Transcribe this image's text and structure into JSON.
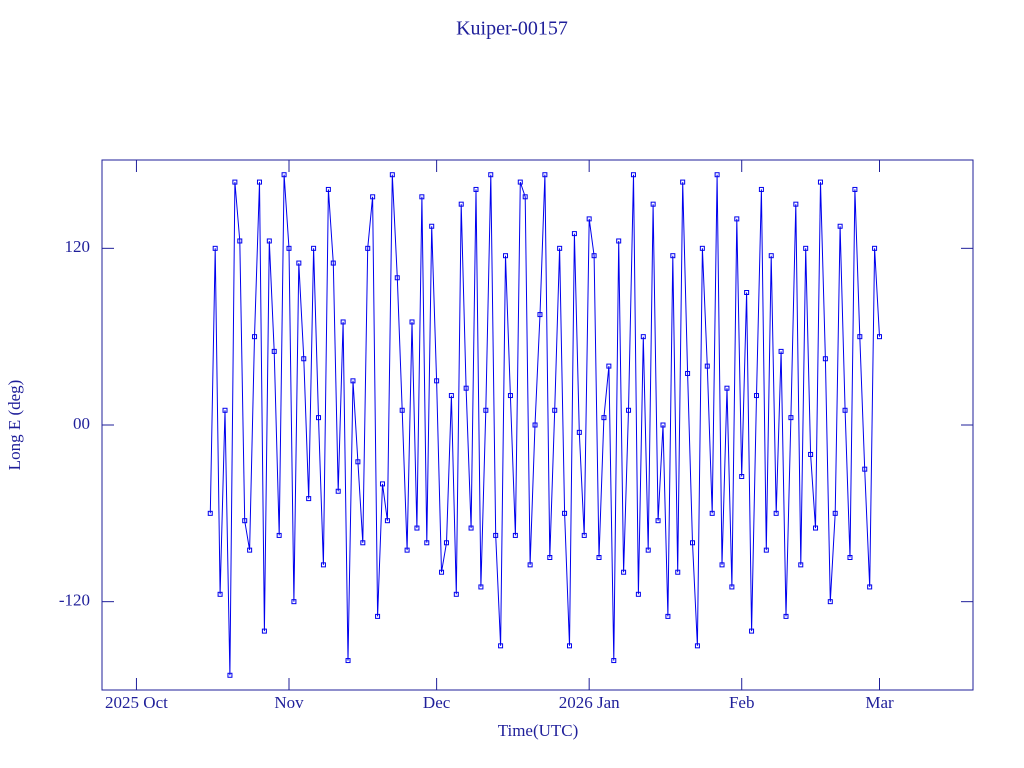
{
  "chart_data": {
    "type": "line",
    "title": "Kuiper-00157",
    "x_label": "Time(UTC)",
    "y_label": "Long E (deg)",
    "color": "#0000ee",
    "marker": "square",
    "xlim": [
      -7,
      170
    ],
    "xticks": [
      {
        "value": 0,
        "label": "2025 Oct"
      },
      {
        "value": 31,
        "label": "Nov"
      },
      {
        "value": 61,
        "label": "Dec"
      },
      {
        "value": 92,
        "label": "2026 Jan"
      },
      {
        "value": 123,
        "label": "Feb"
      },
      {
        "value": 151,
        "label": "Mar"
      }
    ],
    "ylim": [
      -180,
      180
    ],
    "yticks": [
      -120,
      {
        "value": 0,
        "label": "00"
      },
      120
    ],
    "x": [
      15,
      16,
      17,
      18,
      19,
      20,
      21,
      22,
      23,
      24,
      25,
      26,
      27,
      28,
      29,
      30,
      31,
      32,
      33,
      34,
      35,
      36,
      37,
      38,
      39,
      40,
      41,
      42,
      43,
      44,
      45,
      46,
      47,
      48,
      49,
      50,
      51,
      52,
      53,
      54,
      55,
      56,
      57,
      58,
      59,
      60,
      61,
      62,
      63,
      64,
      65,
      66,
      67,
      68,
      69,
      70,
      71,
      72,
      73,
      74,
      75,
      76,
      77,
      78,
      79,
      80,
      81,
      82,
      83,
      84,
      85,
      86,
      87,
      88,
      89,
      90,
      91,
      92,
      93,
      94,
      95,
      96,
      97,
      98,
      99,
      100,
      101,
      102,
      103,
      104,
      105,
      106,
      107,
      108,
      109,
      110,
      111,
      112,
      113,
      114,
      115,
      116,
      117,
      118,
      119,
      120,
      121,
      122,
      123,
      124,
      125,
      126,
      127,
      128,
      129,
      130,
      131,
      132,
      133,
      134,
      135,
      136,
      137,
      138,
      139,
      140,
      141,
      142,
      143,
      144,
      145,
      146,
      147,
      148,
      149,
      150,
      151
    ],
    "values": [
      -60,
      120,
      -115,
      10,
      -170,
      165,
      125,
      -65,
      -85,
      60,
      165,
      -140,
      125,
      50,
      -75,
      170,
      120,
      -120,
      110,
      45,
      -50,
      120,
      5,
      -95,
      160,
      110,
      -45,
      70,
      -160,
      30,
      -25,
      -80,
      120,
      155,
      -130,
      -40,
      -65,
      170,
      100,
      10,
      -85,
      70,
      -70,
      155,
      -80,
      135,
      30,
      -100,
      -80,
      20,
      -115,
      150,
      25,
      -70,
      160,
      -110,
      10,
      170,
      -75,
      -150,
      115,
      20,
      -75,
      165,
      155,
      -95,
      0,
      75,
      170,
      -90,
      10,
      120,
      -60,
      -150,
      130,
      -5,
      -75,
      140,
      115,
      -90,
      5,
      40,
      -160,
      125,
      -100,
      10,
      170,
      -115,
      60,
      -85,
      150,
      -65,
      0,
      -130,
      115,
      -100,
      165,
      35,
      -80,
      -150,
      120,
      40,
      -60,
      170,
      -95,
      25,
      -110,
      140,
      -35,
      90,
      -140,
      20,
      160,
      -85,
      115,
      -60,
      50,
      -130,
      5,
      150,
      -95,
      120,
      -20,
      -70,
      165,
      45,
      -120,
      -60,
      135,
      10,
      -90,
      160,
      60,
      -30,
      -110,
      120,
      60
    ]
  }
}
